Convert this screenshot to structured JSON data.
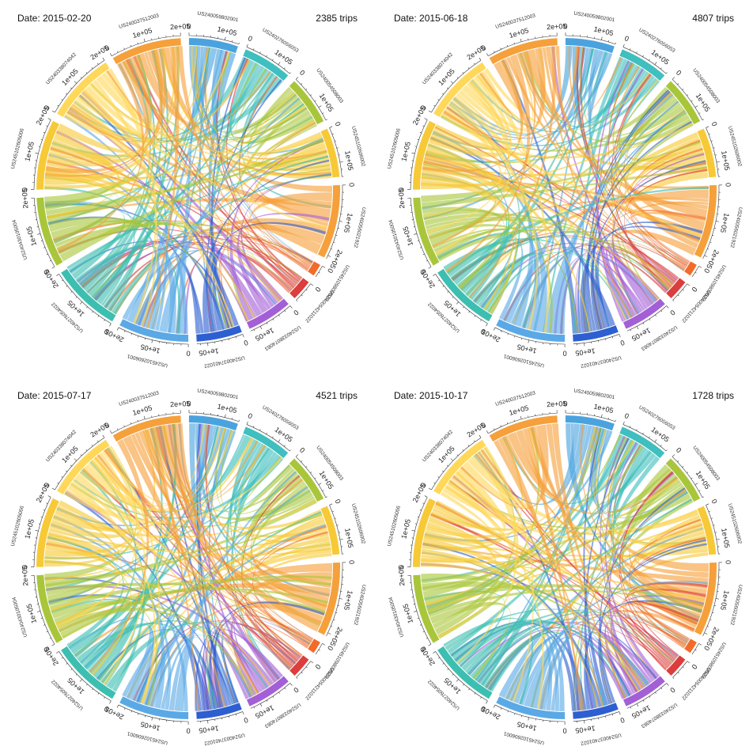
{
  "chart_data": {
    "type": "chord",
    "sectors": [
      {
        "name": "US240059802001",
        "color": "#4aa3df",
        "size": 140000
      },
      {
        "name": "US240276056053",
        "color": "#3fbfbf",
        "size": 140000
      },
      {
        "name": "US240054508003",
        "color": "#a9c63a",
        "size": 140000
      },
      {
        "name": "US245102606002",
        "color": "#f7c936",
        "size": 140000
      },
      {
        "name": "US240056021922",
        "color": "#f5a03a",
        "size": 210000
      },
      {
        "name": "US245109802022",
        "color": "#f26b2a",
        "size": 35000
      },
      {
        "name": "US240054211022",
        "color": "#dc3d3d",
        "size": 60000
      },
      {
        "name": "US240338074083",
        "color": "#a35fd6",
        "size": 130000
      },
      {
        "name": "US240037401022",
        "color": "#2e5fd1",
        "size": 130000
      },
      {
        "name": "US245102606001",
        "color": "#5aa9e6",
        "size": 200000
      },
      {
        "name": "US240276054022",
        "color": "#3cbfb0",
        "size": 200000
      },
      {
        "name": "US240430105004",
        "color": "#a9c63a",
        "size": 200000
      },
      {
        "name": "US245102605006",
        "color": "#f7c936",
        "size": 200000
      },
      {
        "name": "US240338074042",
        "color": "#ffd85a",
        "size": 200000
      },
      {
        "name": "US240037512003",
        "color": "#f5a03a",
        "size": 200000
      }
    ],
    "tick_labels": [
      "0",
      "1e+05",
      "2e+05"
    ],
    "panels": [
      {
        "date_label": "Date: 2015-02-20",
        "trips_label": "2385 trips"
      },
      {
        "date_label": "Date: 2015-06-18",
        "trips_label": "4807 trips"
      },
      {
        "date_label": "Date: 2015-07-17",
        "trips_label": "4521 trips"
      },
      {
        "date_label": "Date: 2015-10-17",
        "trips_label": "1728 trips"
      }
    ]
  }
}
